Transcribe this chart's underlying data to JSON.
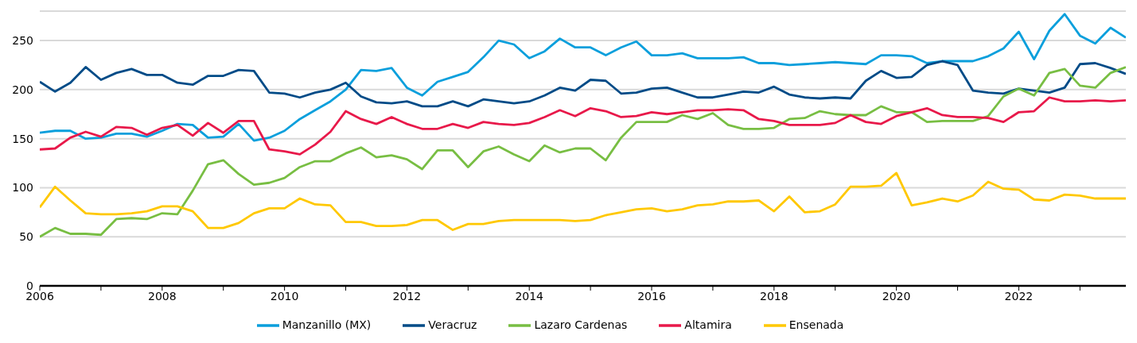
{
  "chart_data": {
    "type": "line",
    "x": [
      2006,
      2006.25,
      2006.5,
      2006.75,
      2007,
      2007.25,
      2007.5,
      2007.75,
      2008,
      2008.25,
      2008.5,
      2008.75,
      2009,
      2009.25,
      2009.5,
      2009.75,
      2010,
      2010.25,
      2010.5,
      2010.75,
      2011,
      2011.25,
      2011.5,
      2011.75,
      2012,
      2012.25,
      2012.5,
      2012.75,
      2013,
      2013.25,
      2013.5,
      2013.75,
      2014,
      2014.25,
      2014.5,
      2014.75,
      2015,
      2015.25,
      2015.5,
      2015.75,
      2016,
      2016.25,
      2016.5,
      2016.75,
      2017,
      2017.25,
      2017.5,
      2017.75,
      2018,
      2018.25,
      2018.5,
      2018.75,
      2019,
      2019.25,
      2019.5,
      2019.75,
      2020,
      2020.25,
      2020.5,
      2020.75,
      2021,
      2021.25,
      2021.5,
      2021.75,
      2022,
      2022.25,
      2022.5,
      2022.75,
      2023,
      2023.25,
      2023.5,
      2023.75
    ],
    "series": [
      {
        "name": "Manzanillo (MX)",
        "color": "#0a9fdc",
        "values": [
          156,
          158,
          158,
          150,
          151,
          155,
          155,
          152,
          158,
          165,
          164,
          151,
          152,
          165,
          148,
          151,
          158,
          170,
          179,
          188,
          200,
          220,
          219,
          222,
          202,
          194,
          208,
          213,
          218,
          233,
          250,
          246,
          232,
          239,
          252,
          243,
          243,
          235,
          243,
          249,
          235,
          235,
          237,
          232,
          232,
          232,
          233,
          227,
          227,
          225,
          226,
          227,
          228,
          227,
          226,
          235,
          235,
          234,
          227,
          229,
          229,
          229,
          234,
          242,
          259,
          231,
          260,
          277,
          255,
          247,
          263,
          253
        ]
      },
      {
        "name": "Veracruz",
        "color": "#004b87",
        "values": [
          208,
          198,
          207,
          223,
          210,
          217,
          221,
          215,
          215,
          207,
          205,
          214,
          214,
          220,
          219,
          197,
          196,
          192,
          197,
          200,
          207,
          193,
          187,
          186,
          188,
          183,
          183,
          188,
          183,
          190,
          188,
          186,
          188,
          194,
          202,
          199,
          210,
          209,
          196,
          197,
          201,
          202,
          197,
          192,
          192,
          195,
          198,
          197,
          203,
          195,
          192,
          191,
          192,
          191,
          209,
          219,
          212,
          213,
          225,
          229,
          225,
          199,
          197,
          196,
          201,
          199,
          197,
          202,
          226,
          227,
          222,
          216
        ]
      },
      {
        "name": "Lazaro Cardenas",
        "color": "#78be43",
        "values": [
          50,
          59,
          53,
          53,
          52,
          68,
          69,
          68,
          74,
          73,
          97,
          124,
          128,
          114,
          103,
          105,
          110,
          121,
          127,
          127,
          135,
          141,
          131,
          133,
          129,
          119,
          138,
          138,
          121,
          137,
          142,
          134,
          127,
          143,
          136,
          140,
          140,
          128,
          151,
          167,
          167,
          167,
          174,
          170,
          176,
          164,
          160,
          160,
          161,
          170,
          171,
          178,
          175,
          174,
          174,
          183,
          177,
          177,
          167,
          168,
          168,
          168,
          173,
          193,
          201,
          194,
          217,
          221,
          204,
          202,
          217,
          223
        ]
      },
      {
        "name": "Altamira",
        "color": "#e8194a",
        "values": [
          139,
          140,
          151,
          157,
          152,
          162,
          161,
          154,
          161,
          164,
          153,
          166,
          156,
          168,
          168,
          139,
          137,
          134,
          144,
          157,
          178,
          170,
          165,
          172,
          165,
          160,
          160,
          165,
          161,
          167,
          165,
          164,
          166,
          172,
          179,
          173,
          181,
          178,
          172,
          173,
          177,
          175,
          177,
          179,
          179,
          180,
          179,
          170,
          168,
          164,
          164,
          164,
          166,
          174,
          167,
          165,
          173,
          177,
          181,
          174,
          172,
          172,
          171,
          167,
          177,
          178,
          192,
          188,
          188,
          189,
          188,
          189
        ]
      },
      {
        "name": "Ensenada",
        "color": "#ffc800",
        "values": [
          80,
          101,
          87,
          74,
          73,
          73,
          74,
          76,
          81,
          81,
          76,
          59,
          59,
          64,
          74,
          79,
          79,
          89,
          83,
          82,
          65,
          65,
          61,
          61,
          62,
          67,
          67,
          57,
          63,
          63,
          66,
          67,
          67,
          67,
          67,
          66,
          67,
          72,
          75,
          78,
          79,
          76,
          78,
          82,
          83,
          86,
          86,
          87,
          76,
          91,
          75,
          76,
          83,
          101,
          101,
          102,
          115,
          82,
          85,
          89,
          86,
          92,
          106,
          99,
          98,
          88,
          87,
          93,
          92,
          89,
          89,
          89
        ]
      }
    ],
    "xlim": [
      2006,
      2023.75
    ],
    "xticks": [
      2006,
      {
        "value": 2007,
        "label": null
      },
      2008,
      {
        "value": 2009,
        "label": null
      },
      2010,
      {
        "value": 2011,
        "label": null
      },
      2012,
      {
        "value": 2013,
        "label": null
      },
      2014,
      {
        "value": 2015,
        "label": null
      },
      2016,
      {
        "value": 2017,
        "label": null
      },
      2018,
      {
        "value": 2019,
        "label": null
      },
      2020,
      {
        "value": 2021,
        "label": null
      },
      2022,
      {
        "value": 2023,
        "label": null
      }
    ],
    "ylim": [
      0,
      280
    ],
    "yticks": [
      0,
      50,
      100,
      150,
      200,
      250
    ],
    "grid": "y",
    "legend": "bottom",
    "marker": "none",
    "line_style": "solid"
  }
}
